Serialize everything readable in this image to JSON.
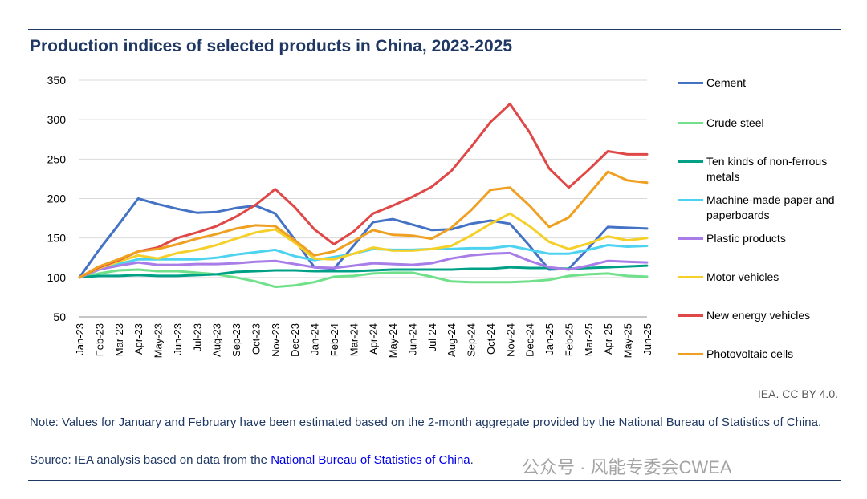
{
  "title": "Production indices of selected products in China, 2023-2025",
  "credit": "IEA. CC BY 4.0.",
  "note": "Note: Values for January and February have been estimated based on the 2-month aggregate provided by the National Bureau of Statistics of China.",
  "source_prefix": "Source: IEA analysis based on data from the ",
  "source_link": "National Bureau of Statistics of China",
  "source_suffix": ".",
  "watermark": "公众号 · 风能专委会CWEA",
  "chart_data": {
    "type": "line",
    "title": "Production indices of selected products in China, 2023-2025",
    "xlabel": "",
    "ylabel": "",
    "ylim": [
      50,
      350
    ],
    "yticks": [
      50,
      100,
      150,
      200,
      250,
      300,
      350
    ],
    "grid": true,
    "legend_position": "right",
    "categories": [
      "Jan-23",
      "Feb-23",
      "Mar-23",
      "Apr-23",
      "May-23",
      "Jun-23",
      "Jul-23",
      "Aug-23",
      "Sep-23",
      "Oct-23",
      "Nov-23",
      "Dec-23",
      "Jan-24",
      "Feb-24",
      "Mar-24",
      "Apr-24",
      "May-24",
      "Jun-24",
      "Jul-24",
      "Aug-24",
      "Sep-24",
      "Oct-24",
      "Nov-24",
      "Dec-24",
      "Jan-25",
      "Feb-25",
      "Mar-25",
      "Apr-25",
      "May-25",
      "Jun-25"
    ],
    "series": [
      {
        "name": "Cement",
        "color": "#4472c4",
        "values": [
          100,
          135,
          167,
          200,
          193,
          187,
          182,
          183,
          188,
          191,
          181,
          148,
          113,
          111,
          140,
          170,
          174,
          167,
          160,
          161,
          168,
          172,
          168,
          140,
          110,
          111,
          137,
          164,
          163,
          162
        ]
      },
      {
        "name": "Crude steel",
        "color": "#70e08a",
        "values": [
          100,
          105,
          109,
          110,
          108,
          108,
          106,
          104,
          100,
          95,
          88,
          90,
          94,
          101,
          102,
          105,
          106,
          106,
          101,
          95,
          94,
          94,
          94,
          95,
          97,
          102,
          104,
          105,
          102,
          101
        ]
      },
      {
        "name": "Ten kinds of non-ferrous metals",
        "color": "#00a087",
        "values": [
          100,
          102,
          102,
          103,
          102,
          102,
          103,
          104,
          107,
          108,
          109,
          109,
          108,
          108,
          108,
          109,
          110,
          110,
          110,
          110,
          111,
          111,
          113,
          112,
          112,
          111,
          112,
          113,
          114,
          115
        ]
      },
      {
        "name": "Machine-made paper and paperboards",
        "color": "#4dd3f0",
        "values": [
          100,
          110,
          117,
          123,
          123,
          123,
          123,
          125,
          129,
          132,
          135,
          127,
          122,
          126,
          130,
          136,
          135,
          135,
          136,
          136,
          137,
          137,
          140,
          135,
          130,
          130,
          135,
          141,
          139,
          140
        ]
      },
      {
        "name": "Plastic products",
        "color": "#a87de8",
        "values": [
          100,
          110,
          115,
          119,
          116,
          116,
          117,
          117,
          118,
          120,
          121,
          117,
          113,
          112,
          115,
          118,
          117,
          116,
          118,
          124,
          128,
          130,
          131,
          121,
          113,
          110,
          115,
          121,
          120,
          119
        ]
      },
      {
        "name": "Motor vehicles",
        "color": "#f5d02a",
        "values": [
          100,
          112,
          120,
          128,
          124,
          131,
          135,
          141,
          149,
          157,
          161,
          144,
          124,
          123,
          130,
          138,
          134,
          134,
          136,
          140,
          153,
          168,
          181,
          165,
          145,
          136,
          143,
          152,
          147,
          150
        ]
      },
      {
        "name": "New energy vehicles",
        "color": "#e04848",
        "values": [
          100,
          113,
          122,
          133,
          138,
          150,
          157,
          165,
          177,
          192,
          212,
          189,
          161,
          142,
          158,
          181,
          191,
          202,
          215,
          235,
          265,
          297,
          320,
          284,
          238,
          214,
          236,
          260,
          256,
          256
        ]
      },
      {
        "name": "Photovoltaic cells",
        "color": "#f0a020",
        "values": [
          100,
          114,
          123,
          133,
          136,
          142,
          149,
          155,
          162,
          166,
          165,
          147,
          128,
          133,
          146,
          160,
          154,
          153,
          149,
          163,
          185,
          211,
          214,
          191,
          164,
          176,
          205,
          234,
          223,
          220
        ]
      }
    ]
  }
}
